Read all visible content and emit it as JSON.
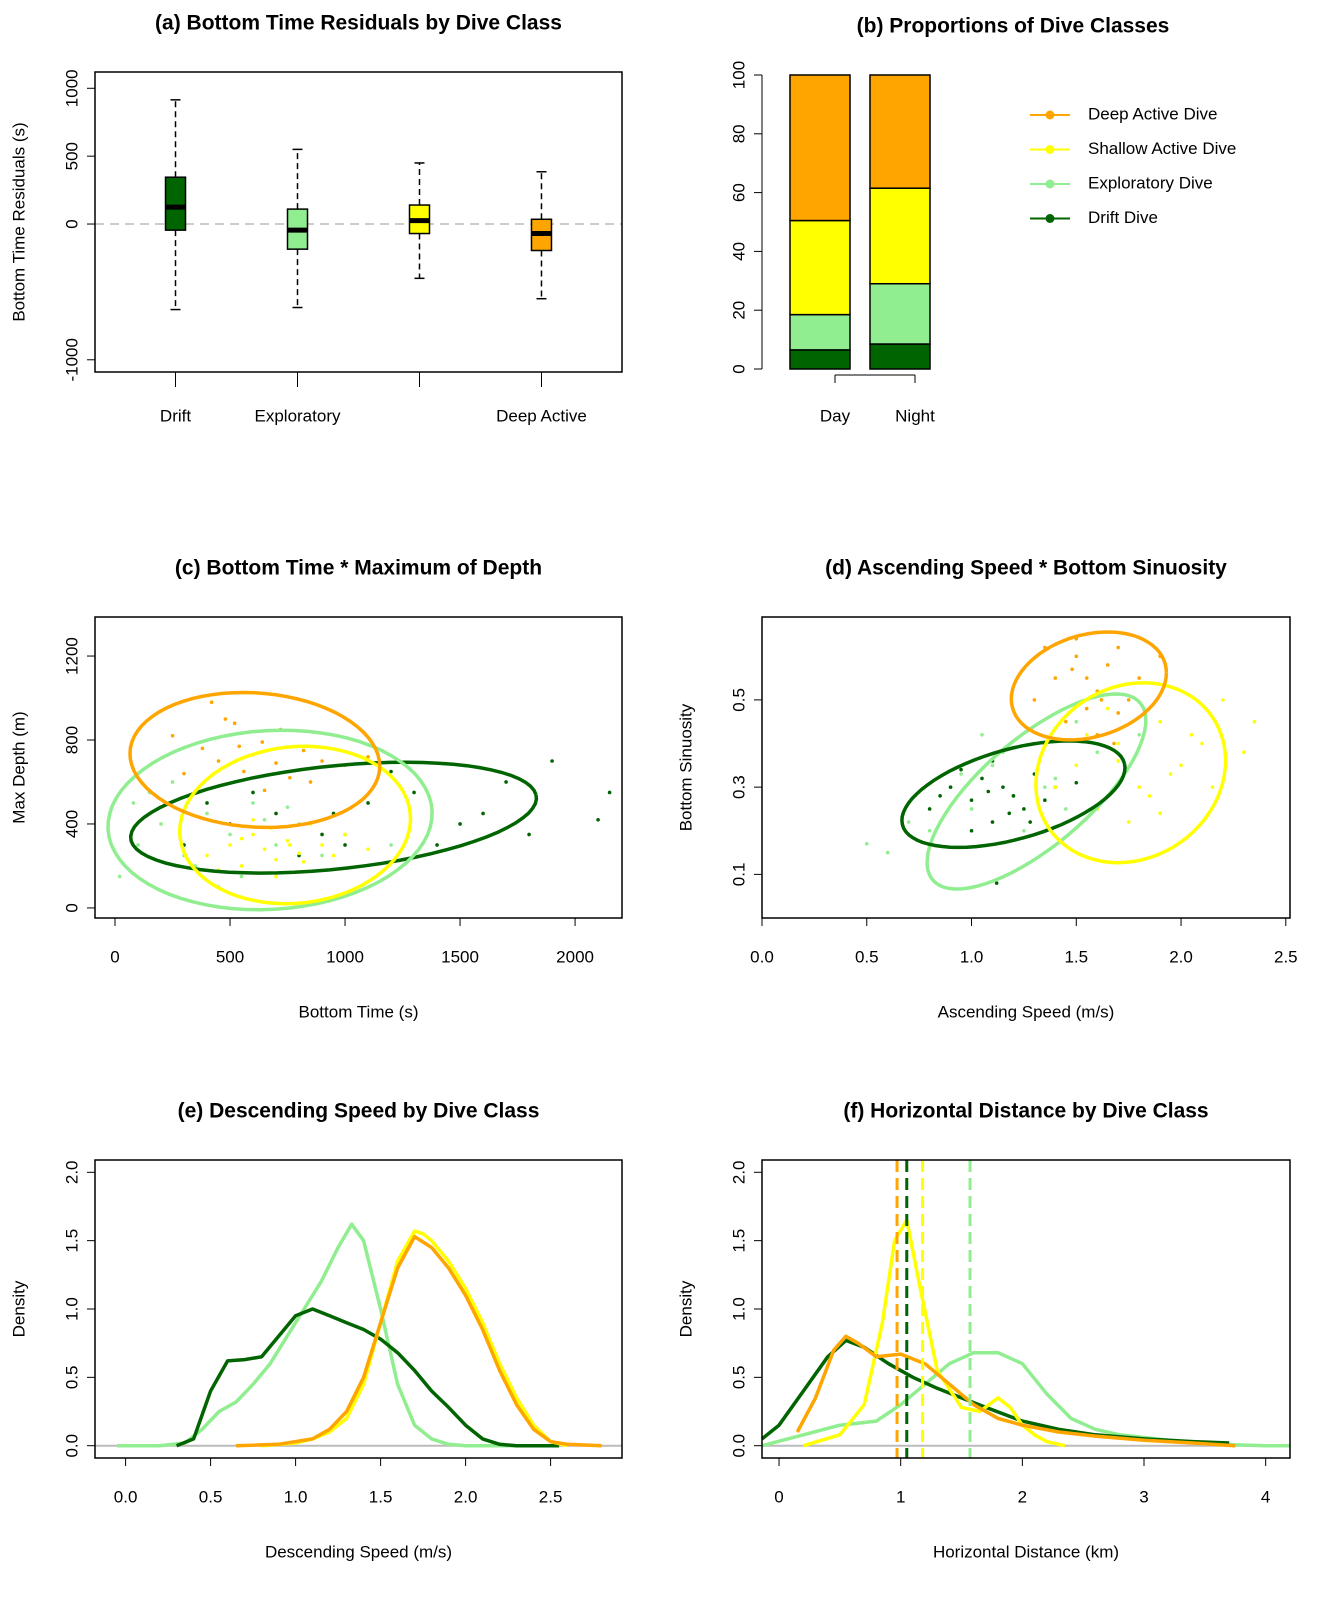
{
  "chart_data": [
    {
      "type": "box",
      "title": "(a) Bottom Time Residuals by Dive Class",
      "ylabel": "Bottom Time Residuals (s)",
      "categories": [
        "Drift",
        "Exploratory",
        null,
        "Deep Active"
      ],
      "colors": [
        "#006400",
        "#90EE90",
        "#FFFF00",
        "#FFA500"
      ],
      "boxes": [
        {
          "whislo": -630,
          "q1": -45,
          "med": 125,
          "q3": 345,
          "whishi": 915
        },
        {
          "whislo": -615,
          "q1": -185,
          "med": -45,
          "q3": 110,
          "whishi": 550
        },
        {
          "whislo": -400,
          "q1": -70,
          "med": 25,
          "q3": 140,
          "whishi": 450
        },
        {
          "whislo": -550,
          "q1": -195,
          "med": -70,
          "q3": 35,
          "whishi": 385
        }
      ],
      "ylim": [
        -1090,
        1120
      ],
      "yticks": [
        -1000,
        0,
        500,
        1000
      ],
      "hline": 0
    },
    {
      "type": "stacked_bar",
      "title": "(b) Proportions of Dive Classes",
      "categories": [
        "Day",
        "Night"
      ],
      "series": [
        {
          "name": "Drift Dive",
          "color": "#006400",
          "values": [
            6.5,
            8.5
          ]
        },
        {
          "name": "Exploratory Dive",
          "color": "#90EE90",
          "values": [
            12,
            20.5
          ]
        },
        {
          "name": "Shallow Active Dive",
          "color": "#FFFF00",
          "values": [
            32,
            32.5
          ]
        },
        {
          "name": "Deep Active Dive",
          "color": "#FFA500",
          "values": [
            49.5,
            38.5
          ]
        }
      ],
      "ylim": [
        0,
        100
      ],
      "yticks": [
        0,
        20,
        40,
        60,
        80,
        100
      ],
      "legend": "right"
    },
    {
      "type": "scatter",
      "title": "(c) Bottom Time * Maximum of Depth",
      "xlabel": "Bottom Time (s)",
      "ylabel": "Max Depth (m)",
      "xlim": [
        -87,
        2204
      ],
      "ylim": [
        -48,
        1386
      ],
      "xticks": [
        0,
        500,
        1000,
        1500,
        2000
      ],
      "yticks": [
        0,
        400,
        800,
        1200
      ],
      "series": [
        {
          "color": "#006400",
          "x": [
            300,
            500,
            700,
            900,
            1100,
            1300,
            1500,
            1700,
            1900,
            2100,
            800,
            1000,
            1200,
            600,
            1400,
            400,
            1600,
            1800,
            2150,
            950
          ],
          "y": [
            300,
            400,
            450,
            350,
            500,
            550,
            400,
            600,
            700,
            420,
            250,
            300,
            650,
            550,
            300,
            500,
            450,
            350,
            550,
            450
          ],
          "ellipse": {
            "center": [
              950,
              430
            ],
            "u": [
              880,
              110
            ],
            "v": [
              -60,
              240
            ]
          }
        },
        {
          "color": "#90EE90",
          "x": [
            20,
            100,
            200,
            300,
            400,
            500,
            600,
            700,
            800,
            900,
            150,
            350,
            550,
            750,
            1000,
            250,
            450,
            650,
            80,
            1200
          ],
          "y": [
            150,
            300,
            400,
            250,
            450,
            350,
            500,
            300,
            400,
            250,
            550,
            200,
            150,
            480,
            350,
            600,
            100,
            420,
            500,
            300
          ],
          "ellipse": {
            "center": [
              674,
              419
            ],
            "u": [
              700,
              80
            ],
            "v": [
              -80,
              420
            ]
          }
        },
        {
          "color": "#FFFF00",
          "x": [
            400,
            500,
            550,
            600,
            650,
            700,
            750,
            800,
            850,
            900,
            1000,
            1100,
            450,
            600,
            700,
            820,
            950,
            550,
            680,
            760
          ],
          "y": [
            250,
            300,
            200,
            350,
            280,
            230,
            320,
            260,
            400,
            300,
            350,
            280,
            180,
            420,
            150,
            220,
            250,
            330,
            380,
            300
          ],
          "ellipse": {
            "center": [
              783,
              395
            ],
            "u": [
              500,
              60
            ],
            "v": [
              -40,
              370
            ]
          }
        },
        {
          "color": "#FFA500",
          "x": [
            250,
            380,
            450,
            520,
            560,
            600,
            640,
            700,
            760,
            820,
            900,
            1000,
            1100,
            300,
            480,
            650,
            720,
            540,
            850,
            420
          ],
          "y": [
            820,
            760,
            700,
            880,
            650,
            730,
            790,
            690,
            620,
            750,
            700,
            680,
            720,
            640,
            900,
            560,
            850,
            770,
            600,
            980
          ],
          "ellipse": {
            "center": [
              608,
              705
            ],
            "u": [
              543,
              -30
            ],
            "v": [
              0,
              320
            ]
          }
        }
      ]
    },
    {
      "type": "scatter",
      "title": "(d) Ascending Speed * Bottom Sinuosity",
      "xlabel": "Ascending Speed (m/s)",
      "ylabel": "Bottom Sinuosity",
      "xlim": [
        0,
        2.52
      ],
      "ylim": [
        0,
        0.69
      ],
      "xticks": [
        {
          "value": 0,
          "label": "0.0"
        },
        0.5,
        {
          "value": 1,
          "label": "1.0"
        },
        1.5,
        {
          "value": 2,
          "label": "2.0"
        },
        2.5
      ],
      "yticks": [
        0.1,
        0.3,
        0.5
      ],
      "series": [
        {
          "color": "#90EE90",
          "x": [
            0.6,
            0.8,
            0.9,
            1.0,
            1.1,
            1.2,
            1.3,
            1.4,
            1.5,
            1.6,
            0.7,
            1.05,
            1.25,
            1.45,
            1.7,
            0.95,
            1.15,
            1.35,
            0.5,
            1.8
          ],
          "y": [
            0.15,
            0.2,
            0.3,
            0.25,
            0.35,
            0.28,
            0.4,
            0.32,
            0.45,
            0.38,
            0.22,
            0.42,
            0.2,
            0.25,
            0.47,
            0.33,
            0.38,
            0.3,
            0.17,
            0.42
          ],
          "ellipse": {
            "center": [
              1.31,
              0.29
            ],
            "u": [
              0.5,
              0.2
            ],
            "v": [
              -0.15,
              0.1
            ]
          }
        },
        {
          "color": "#006400",
          "x": [
            0.8,
            0.9,
            1.0,
            1.05,
            1.1,
            1.15,
            1.2,
            1.3,
            1.4,
            1.0,
            1.1,
            1.25,
            0.95,
            1.35,
            1.5,
            1.08,
            1.18,
            0.85,
            1.28,
            1.12
          ],
          "y": [
            0.25,
            0.3,
            0.27,
            0.32,
            0.22,
            0.3,
            0.28,
            0.33,
            0.3,
            0.2,
            0.36,
            0.25,
            0.34,
            0.27,
            0.31,
            0.29,
            0.24,
            0.28,
            0.22,
            0.08
          ],
          "ellipse": {
            "center": [
              1.2,
              0.284
            ],
            "u": [
              0.53,
              0.07
            ],
            "v": [
              -0.05,
              0.1
            ]
          }
        },
        {
          "color": "#FFFF00",
          "x": [
            1.4,
            1.5,
            1.6,
            1.7,
            1.8,
            1.9,
            2.0,
            2.1,
            2.2,
            2.3,
            1.65,
            1.75,
            1.85,
            1.95,
            2.05,
            1.55,
            1.7,
            1.9,
            2.15,
            2.35
          ],
          "y": [
            0.3,
            0.35,
            0.25,
            0.4,
            0.3,
            0.45,
            0.35,
            0.4,
            0.5,
            0.38,
            0.48,
            0.22,
            0.28,
            0.33,
            0.42,
            0.42,
            0.36,
            0.24,
            0.3,
            0.45
          ],
          "ellipse": {
            "center": [
              1.76,
              0.333
            ],
            "u": [
              0.45,
              0.05
            ],
            "v": [
              -0.05,
              0.2
            ]
          }
        },
        {
          "color": "#FFA500",
          "x": [
            1.3,
            1.4,
            1.5,
            1.55,
            1.6,
            1.65,
            1.7,
            1.75,
            1.8,
            1.45,
            1.5,
            1.6,
            1.7,
            1.35,
            1.9,
            1.55,
            1.62,
            1.68,
            1.48,
            1.75
          ],
          "y": [
            0.5,
            0.55,
            0.6,
            0.48,
            0.52,
            0.58,
            0.62,
            0.5,
            0.55,
            0.45,
            0.64,
            0.42,
            0.47,
            0.62,
            0.6,
            0.55,
            0.5,
            0.4,
            0.57,
            0.65
          ],
          "ellipse": {
            "center": [
              1.56,
              0.532
            ],
            "u": [
              0.37,
              0.03
            ],
            "v": [
              0,
              0.12
            ]
          }
        }
      ]
    },
    {
      "type": "line",
      "title": "(e) Descending Speed by Dive Class",
      "xlabel": "Descending Speed (m/s)",
      "ylabel": "Density",
      "xlim": [
        -0.18,
        2.92
      ],
      "ylim": [
        -0.09,
        2.09
      ],
      "xticks": [
        {
          "value": 0,
          "label": "0.0"
        },
        0.5,
        {
          "value": 1,
          "label": "1.0"
        },
        1.5,
        {
          "value": 2,
          "label": "2.0"
        },
        2.5
      ],
      "yticks": [
        {
          "value": 0,
          "label": "0.0"
        },
        0.5,
        {
          "value": 1,
          "label": "1.0"
        },
        1.5,
        {
          "value": 2,
          "label": "2.0"
        }
      ],
      "hline": 0,
      "series": [
        {
          "color": "#90EE90",
          "x": [
            -0.05,
            0.2,
            0.35,
            0.45,
            0.55,
            0.65,
            0.75,
            0.85,
            0.95,
            1.05,
            1.15,
            1.25,
            1.33,
            1.4,
            1.5,
            1.6,
            1.7,
            1.8,
            1.9,
            2.0,
            2.2,
            2.5
          ],
          "y": [
            0,
            0,
            0.02,
            0.12,
            0.25,
            0.32,
            0.45,
            0.6,
            0.8,
            1.0,
            1.2,
            1.45,
            1.62,
            1.5,
            1.0,
            0.45,
            0.15,
            0.05,
            0.01,
            0,
            0,
            0
          ]
        },
        {
          "color": "#006400",
          "x": [
            0.3,
            0.4,
            0.5,
            0.6,
            0.7,
            0.8,
            0.9,
            1.0,
            1.1,
            1.2,
            1.3,
            1.4,
            1.5,
            1.6,
            1.7,
            1.8,
            1.9,
            2.0,
            2.1,
            2.2,
            2.3,
            2.4,
            2.55
          ],
          "y": [
            0,
            0.05,
            0.4,
            0.62,
            0.63,
            0.65,
            0.8,
            0.95,
            1.0,
            0.95,
            0.9,
            0.85,
            0.78,
            0.68,
            0.55,
            0.4,
            0.28,
            0.15,
            0.05,
            0.01,
            0,
            0,
            0
          ]
        },
        {
          "color": "#FFFF00",
          "x": [
            0.8,
            1.0,
            1.1,
            1.2,
            1.3,
            1.4,
            1.5,
            1.6,
            1.7,
            1.75,
            1.8,
            1.9,
            2.0,
            2.1,
            2.2,
            2.3,
            2.4,
            2.5,
            2.6
          ],
          "y": [
            0,
            0.02,
            0.05,
            0.1,
            0.2,
            0.45,
            0.9,
            1.35,
            1.57,
            1.55,
            1.5,
            1.35,
            1.15,
            0.9,
            0.6,
            0.35,
            0.15,
            0.03,
            0
          ]
        },
        {
          "color": "#FFA500",
          "x": [
            0.65,
            0.9,
            1.1,
            1.2,
            1.3,
            1.4,
            1.5,
            1.6,
            1.7,
            1.8,
            1.9,
            2.0,
            2.1,
            2.2,
            2.3,
            2.4,
            2.5,
            2.6,
            2.8
          ],
          "y": [
            0,
            0.01,
            0.05,
            0.12,
            0.25,
            0.5,
            0.9,
            1.3,
            1.53,
            1.45,
            1.3,
            1.1,
            0.85,
            0.55,
            0.3,
            0.12,
            0.03,
            0.01,
            0
          ]
        }
      ]
    },
    {
      "type": "line",
      "title": "(f) Horizontal Distance by Dive Class",
      "xlabel": "Horizontal Distance (km)",
      "ylabel": "Density",
      "xlim": [
        -0.14,
        4.2
      ],
      "ylim": [
        -0.09,
        2.09
      ],
      "xticks": [
        0,
        1,
        2,
        3,
        4
      ],
      "yticks": [
        {
          "value": 0,
          "label": "0.0"
        },
        0.5,
        {
          "value": 1,
          "label": "1.0"
        },
        1.5,
        {
          "value": 2,
          "label": "2.0"
        }
      ],
      "hline": 0,
      "series": [
        {
          "color": "#90EE90",
          "vline": 1.57,
          "x": [
            -0.14,
            0.2,
            0.5,
            0.8,
            1.0,
            1.2,
            1.4,
            1.6,
            1.8,
            2.0,
            2.2,
            2.4,
            2.6,
            2.8,
            3.0,
            3.3,
            3.6,
            4.0,
            4.2
          ],
          "y": [
            0,
            0.08,
            0.15,
            0.18,
            0.3,
            0.45,
            0.6,
            0.68,
            0.68,
            0.6,
            0.38,
            0.2,
            0.12,
            0.08,
            0.06,
            0.03,
            0.01,
            0,
            0
          ]
        },
        {
          "color": "#006400",
          "vline": 1.05,
          "x": [
            -0.14,
            0,
            0.2,
            0.4,
            0.55,
            0.7,
            0.9,
            1.1,
            1.3,
            1.5,
            1.7,
            2.0,
            2.3,
            2.6,
            3.0,
            3.4,
            3.7
          ],
          "y": [
            0.05,
            0.15,
            0.4,
            0.65,
            0.77,
            0.72,
            0.6,
            0.5,
            0.42,
            0.35,
            0.28,
            0.18,
            0.12,
            0.08,
            0.05,
            0.03,
            0.02
          ]
        },
        {
          "color": "#FFFF00",
          "vline": 1.18,
          "x": [
            0.2,
            0.5,
            0.7,
            0.85,
            0.95,
            1.05,
            1.15,
            1.3,
            1.5,
            1.65,
            1.8,
            1.9,
            2.0,
            2.1,
            2.2,
            2.35
          ],
          "y": [
            0,
            0.08,
            0.3,
            0.9,
            1.5,
            1.65,
            1.2,
            0.55,
            0.28,
            0.25,
            0.35,
            0.28,
            0.15,
            0.08,
            0.03,
            0
          ]
        },
        {
          "color": "#FFA500",
          "vline": 0.97,
          "x": [
            0.15,
            0.3,
            0.45,
            0.55,
            0.65,
            0.8,
            1.0,
            1.2,
            1.4,
            1.6,
            1.8,
            2.0,
            2.3,
            2.6,
            3.0,
            3.4,
            3.75
          ],
          "y": [
            0.1,
            0.35,
            0.7,
            0.8,
            0.75,
            0.65,
            0.67,
            0.6,
            0.45,
            0.3,
            0.2,
            0.15,
            0.1,
            0.07,
            0.04,
            0.02,
            0
          ]
        }
      ]
    }
  ]
}
